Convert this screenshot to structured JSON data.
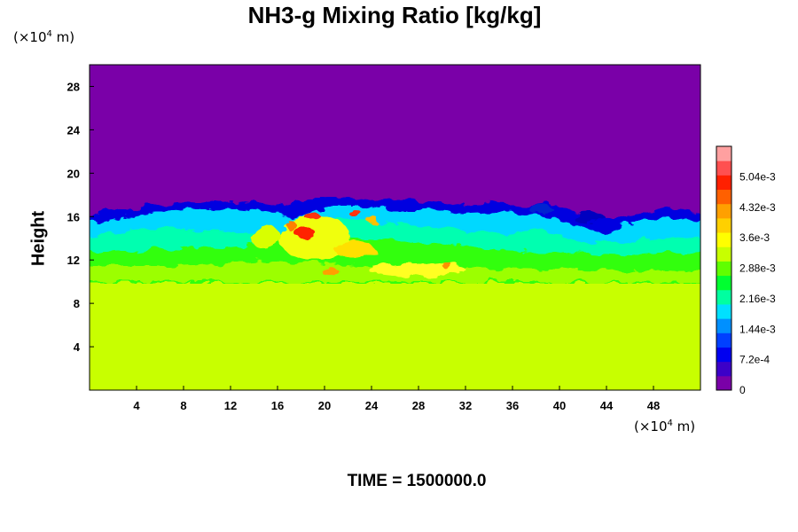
{
  "chart_data": {
    "type": "heatmap",
    "title": "NH3-g Mixing Ratio [kg/kg]",
    "ylabel": "Height",
    "xunit_prefix": "(×10",
    "xunit_exp": "4",
    "xunit_suffix": " m)",
    "yunit_prefix": "(×10",
    "yunit_exp": "4",
    "yunit_suffix": " m)",
    "footer": "TIME = 1500000.0",
    "xlim": [
      0,
      52
    ],
    "ylim": [
      0,
      30
    ],
    "xticks": [
      "4",
      "8",
      "12",
      "16",
      "20",
      "24",
      "28",
      "32",
      "36",
      "40",
      "44",
      "48"
    ],
    "yticks": [
      "4",
      "8",
      "12",
      "16",
      "20",
      "24",
      "28"
    ],
    "colorbar": {
      "range": [
        0,
        0.00576
      ],
      "tick_labels": [
        "0",
        "7.2e-4",
        "1.44e-3",
        "2.16e-3",
        "2.88e-3",
        "3.6e-3",
        "4.32e-3",
        "5.04e-3"
      ],
      "tick_values": [
        0,
        0.00072,
        0.00144,
        0.00216,
        0.00288,
        0.0036,
        0.00432,
        0.00504
      ],
      "colors": [
        "#7a00a8",
        "#3c00c8",
        "#0000f0",
        "#0040ff",
        "#0090ff",
        "#00e0ff",
        "#00ffa0",
        "#00ff30",
        "#60ff00",
        "#c8ff00",
        "#ffff00",
        "#ffd000",
        "#ffa000",
        "#ff6000",
        "#ff2000",
        "#ff5050",
        "#ffa0a0"
      ]
    },
    "regions": [
      {
        "name": "upper",
        "y_range": [
          16,
          30
        ],
        "value": 0
      },
      {
        "name": "lower",
        "y_range": [
          0,
          10
        ],
        "value": 0.0036
      }
    ]
  }
}
